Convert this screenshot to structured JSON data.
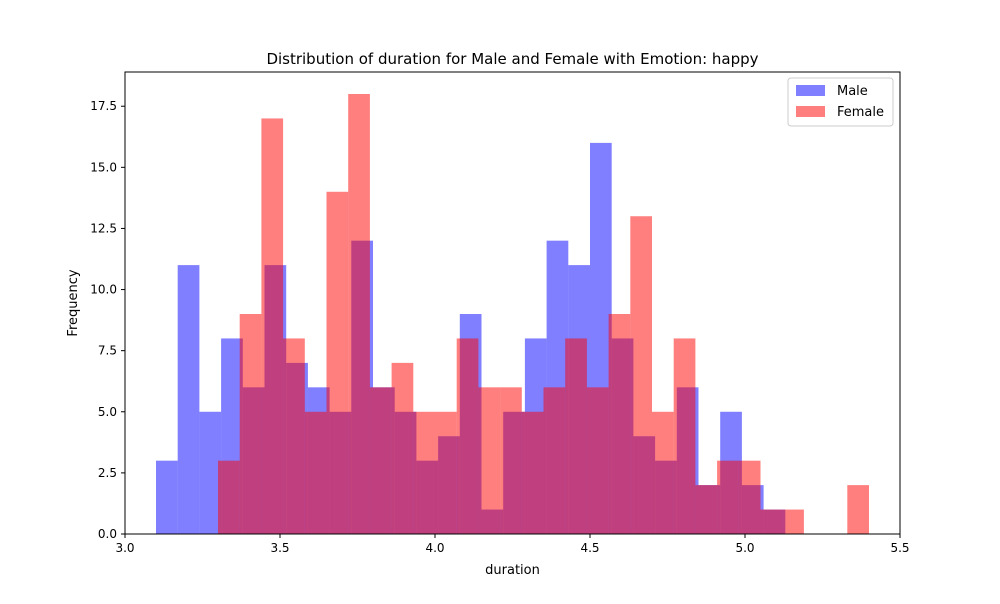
{
  "chart_data": {
    "type": "histogram",
    "title": "Distribution of duration for Male and Female with Emotion: happy",
    "xlabel": "duration",
    "ylabel": "Frequency",
    "xlim": [
      3.0,
      5.5
    ],
    "ylim": [
      0,
      18.9
    ],
    "xticks": [
      "3.0",
      "3.5",
      "4.0",
      "4.5",
      "5.0",
      "5.5"
    ],
    "yticks": [
      "0.0",
      "2.5",
      "5.0",
      "7.5",
      "10.0",
      "12.5",
      "15.0",
      "17.5"
    ],
    "legend_position": "top-right",
    "series": [
      {
        "name": "Male",
        "color": "#0000ff",
        "bin_edges": [
          3.1,
          3.17,
          3.24,
          3.31,
          3.38,
          3.45,
          3.52,
          3.59,
          3.66,
          3.73,
          3.8,
          3.87,
          3.94,
          4.01,
          4.08,
          4.15,
          4.22,
          4.29,
          4.36,
          4.43,
          4.5,
          4.57,
          4.64,
          4.71,
          4.78,
          4.85,
          4.92,
          4.99,
          5.06,
          5.13,
          5.2
        ],
        "values": [
          3,
          11,
          5,
          8,
          6,
          11,
          7,
          6,
          5,
          12,
          6,
          5,
          3,
          4,
          9,
          1,
          5,
          8,
          12,
          11,
          16,
          8,
          4,
          3,
          6,
          2,
          5,
          2,
          1,
          0
        ]
      },
      {
        "name": "Female",
        "color": "#ff0000",
        "bin_edges": [
          3.3,
          3.37,
          3.44,
          3.51,
          3.58,
          3.65,
          3.72,
          3.79,
          3.86,
          3.93,
          4.0,
          4.07,
          4.14,
          4.21,
          4.28,
          4.35,
          4.42,
          4.49,
          4.56,
          4.63,
          4.7,
          4.77,
          4.84,
          4.91,
          4.98,
          5.05,
          5.12,
          5.19,
          5.26,
          5.33,
          5.4
        ],
        "values": [
          3,
          9,
          17,
          8,
          5,
          14,
          18,
          6,
          7,
          5,
          5,
          8,
          6,
          6,
          5,
          6,
          8,
          6,
          9,
          13,
          5,
          8,
          2,
          3,
          3,
          1,
          1,
          0,
          0,
          2
        ]
      }
    ]
  }
}
